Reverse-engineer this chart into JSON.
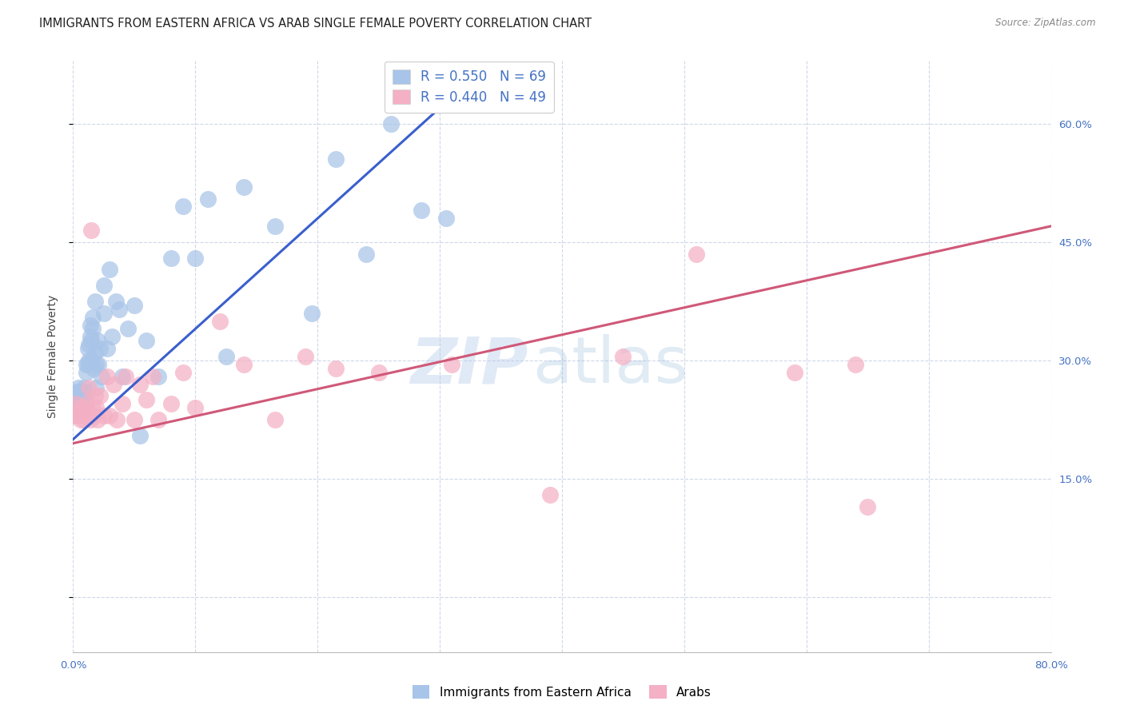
{
  "title": "IMMIGRANTS FROM EASTERN AFRICA VS ARAB SINGLE FEMALE POVERTY CORRELATION CHART",
  "source": "Source: ZipAtlas.com",
  "xlabel_label": "Immigrants from Eastern Africa",
  "xlabel_label2": "Arabs",
  "ylabel": "Single Female Poverty",
  "xlim": [
    0.0,
    0.8
  ],
  "ylim": [
    -0.07,
    0.68
  ],
  "blue_R": 0.55,
  "blue_N": 69,
  "pink_R": 0.44,
  "pink_N": 49,
  "blue_color": "#a8c4e8",
  "blue_line_color": "#3a5fcd",
  "pink_color": "#f4b0c4",
  "pink_line_color": "#d05878",
  "blue_scatter_x": [
    0.001,
    0.001,
    0.002,
    0.002,
    0.003,
    0.003,
    0.004,
    0.004,
    0.005,
    0.005,
    0.005,
    0.006,
    0.006,
    0.007,
    0.007,
    0.008,
    0.008,
    0.009,
    0.009,
    0.009,
    0.01,
    0.01,
    0.011,
    0.011,
    0.012,
    0.012,
    0.013,
    0.013,
    0.014,
    0.014,
    0.015,
    0.015,
    0.016,
    0.016,
    0.017,
    0.018,
    0.018,
    0.019,
    0.019,
    0.02,
    0.021,
    0.022,
    0.023,
    0.025,
    0.025,
    0.028,
    0.03,
    0.032,
    0.035,
    0.038,
    0.04,
    0.045,
    0.05,
    0.055,
    0.06,
    0.07,
    0.08,
    0.09,
    0.1,
    0.11,
    0.125,
    0.14,
    0.165,
    0.195,
    0.215,
    0.24,
    0.26,
    0.285,
    0.305
  ],
  "blue_scatter_y": [
    0.235,
    0.25,
    0.24,
    0.255,
    0.235,
    0.26,
    0.24,
    0.265,
    0.235,
    0.25,
    0.26,
    0.24,
    0.26,
    0.245,
    0.235,
    0.26,
    0.245,
    0.24,
    0.25,
    0.265,
    0.245,
    0.255,
    0.295,
    0.285,
    0.315,
    0.295,
    0.3,
    0.32,
    0.33,
    0.345,
    0.3,
    0.325,
    0.34,
    0.355,
    0.29,
    0.31,
    0.375,
    0.265,
    0.295,
    0.325,
    0.295,
    0.315,
    0.28,
    0.36,
    0.395,
    0.315,
    0.415,
    0.33,
    0.375,
    0.365,
    0.28,
    0.34,
    0.37,
    0.205,
    0.325,
    0.28,
    0.43,
    0.495,
    0.43,
    0.505,
    0.305,
    0.52,
    0.47,
    0.36,
    0.555,
    0.435,
    0.6,
    0.49,
    0.48
  ],
  "pink_scatter_x": [
    0.001,
    0.002,
    0.003,
    0.004,
    0.005,
    0.006,
    0.007,
    0.008,
    0.009,
    0.01,
    0.011,
    0.012,
    0.013,
    0.014,
    0.015,
    0.016,
    0.017,
    0.018,
    0.019,
    0.02,
    0.022,
    0.025,
    0.028,
    0.03,
    0.033,
    0.036,
    0.04,
    0.043,
    0.05,
    0.055,
    0.06,
    0.065,
    0.07,
    0.08,
    0.09,
    0.1,
    0.12,
    0.14,
    0.165,
    0.19,
    0.215,
    0.25,
    0.31,
    0.39,
    0.45,
    0.51,
    0.59,
    0.64,
    0.65
  ],
  "pink_scatter_y": [
    0.23,
    0.245,
    0.23,
    0.235,
    0.24,
    0.225,
    0.235,
    0.24,
    0.225,
    0.235,
    0.245,
    0.235,
    0.265,
    0.225,
    0.465,
    0.24,
    0.23,
    0.255,
    0.24,
    0.225,
    0.255,
    0.23,
    0.28,
    0.23,
    0.27,
    0.225,
    0.245,
    0.28,
    0.225,
    0.27,
    0.25,
    0.28,
    0.225,
    0.245,
    0.285,
    0.24,
    0.35,
    0.295,
    0.225,
    0.305,
    0.29,
    0.285,
    0.295,
    0.13,
    0.305,
    0.435,
    0.285,
    0.295,
    0.115
  ],
  "watermark_zip_color": "#b0c8e8",
  "watermark_atlas_color": "#90b8d8",
  "background_color": "#ffffff",
  "grid_color": "#d0d8e8",
  "title_fontsize": 10.5,
  "axis_label_fontsize": 10,
  "tick_fontsize": 9.5,
  "legend_fontsize": 12
}
